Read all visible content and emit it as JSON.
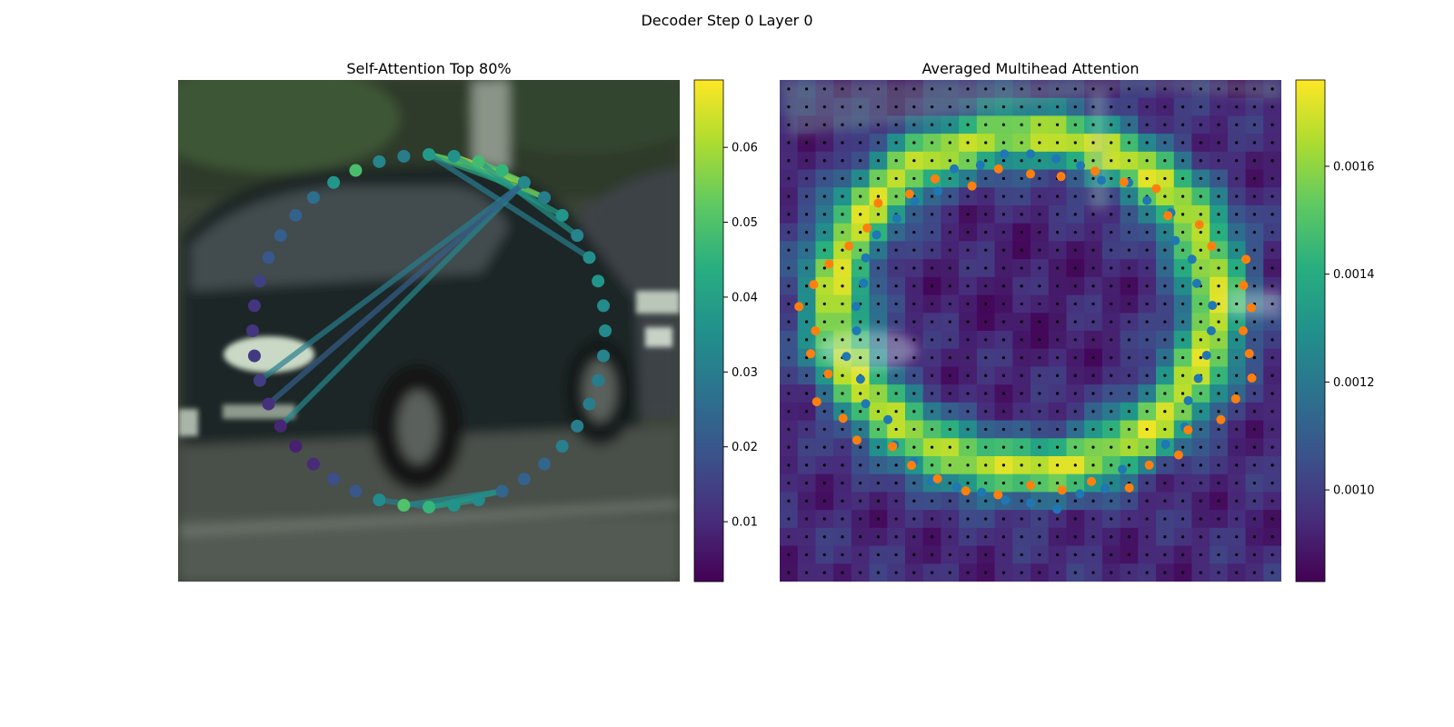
{
  "figure": {
    "suptitle": "Decoder Step 0 Layer 0"
  },
  "chart_data": [
    {
      "type": "scatter",
      "panel": "left",
      "title": "Self-Attention Top 80%",
      "background": "photo of a dark hatchback car on a street",
      "colorbar": {
        "colormap": "viridis",
        "range": [
          0.002,
          0.069
        ],
        "ticks": [
          0.01,
          0.02,
          0.03,
          0.04,
          0.05,
          0.06
        ],
        "tick_labels": [
          "0.01",
          "0.02",
          "0.03",
          "0.04",
          "0.05",
          "0.06"
        ]
      },
      "point_values": [
        0.038,
        0.036,
        0.048,
        0.046,
        0.033,
        0.03,
        0.037,
        0.032,
        0.035,
        0.037,
        0.034,
        0.034,
        0.032,
        0.03,
        0.03,
        0.03,
        0.031,
        0.024,
        0.023,
        0.024,
        0.034,
        0.036,
        0.046,
        0.05,
        0.034,
        0.02,
        0.018,
        0.01,
        0.008,
        0.009,
        0.011,
        0.014,
        0.013,
        0.012,
        0.012,
        0.015,
        0.02,
        0.022,
        0.023,
        0.026,
        0.037,
        0.049,
        0.032,
        0.03
      ],
      "connections": [
        {
          "from": 0,
          "to": 3,
          "value": 0.046
        },
        {
          "from": 0,
          "to": 4,
          "value": 0.06
        },
        {
          "from": 0,
          "to": 5,
          "value": 0.042
        },
        {
          "from": 1,
          "to": 4,
          "value": 0.066
        },
        {
          "from": 1,
          "to": 5,
          "value": 0.055
        },
        {
          "from": 1,
          "to": 6,
          "value": 0.04
        },
        {
          "from": 2,
          "to": 4,
          "value": 0.05
        },
        {
          "from": 2,
          "to": 7,
          "value": 0.036
        },
        {
          "from": 0,
          "to": 8,
          "value": 0.03
        },
        {
          "from": 4,
          "to": 29,
          "value": 0.033
        },
        {
          "from": 4,
          "to": 31,
          "value": 0.03
        },
        {
          "from": 4,
          "to": 30,
          "value": 0.022
        },
        {
          "from": 22,
          "to": 19,
          "value": 0.04
        },
        {
          "from": 22,
          "to": 20,
          "value": 0.038
        },
        {
          "from": 23,
          "to": 19,
          "value": 0.034
        },
        {
          "from": 22,
          "to": 24,
          "value": 0.03
        }
      ]
    },
    {
      "type": "heatmap",
      "panel": "right",
      "title": "Averaged Multihead Attention",
      "grid_size": 28,
      "colorbar": {
        "colormap": "viridis",
        "range": [
          0.00083,
          0.00176
        ],
        "ticks": [
          0.001,
          0.0012,
          0.0014,
          0.0016
        ],
        "tick_labels": [
          "0.0010",
          "0.0012",
          "0.0014",
          "0.0016"
        ]
      },
      "series": [
        {
          "color": "#1f77b4"
        },
        {
          "color": "#ff7f0e"
        }
      ]
    }
  ]
}
